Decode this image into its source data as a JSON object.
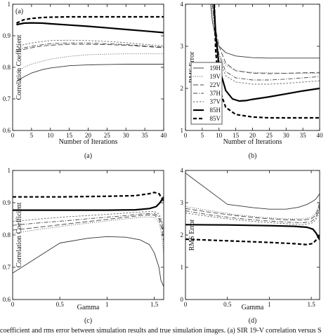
{
  "caption": "coefficient and rms error between simulation results and true simulation images. (a) SIR 19-V correlation versus S",
  "chart_data": [
    {
      "id": "a",
      "type": "line",
      "panel_label": "(a)",
      "corner_label": "(a)",
      "xlabel": "Number of Iterations",
      "ylabel": "Correlation Coefficient",
      "xlim": [
        0,
        40
      ],
      "ylim": [
        0.6,
        1.0
      ],
      "xticks": [
        0,
        5,
        10,
        15,
        20,
        25,
        30,
        35,
        40
      ],
      "yticks": [
        0.6,
        0.7,
        0.8,
        0.9,
        1.0
      ],
      "yticklabels": [
        "0.6",
        "0.7",
        "0.8",
        "0.9",
        "1"
      ],
      "series": [
        {
          "key": "19H",
          "x": [
            1,
            3,
            5,
            8,
            10,
            15,
            20,
            25,
            30,
            35,
            40
          ],
          "y": [
            0.755,
            0.77,
            0.782,
            0.793,
            0.798,
            0.805,
            0.808,
            0.809,
            0.81,
            0.81,
            0.81
          ]
        },
        {
          "key": "19V",
          "x": [
            1,
            3,
            5,
            8,
            10,
            15,
            20,
            25,
            30,
            35,
            40
          ],
          "y": [
            0.785,
            0.8,
            0.81,
            0.82,
            0.826,
            0.835,
            0.84,
            0.842,
            0.843,
            0.843,
            0.843
          ]
        },
        {
          "key": "22V",
          "x": [
            1,
            3,
            5,
            8,
            10,
            15,
            20,
            25,
            30,
            35,
            40
          ],
          "y": [
            0.85,
            0.857,
            0.862,
            0.868,
            0.87,
            0.873,
            0.873,
            0.872,
            0.87,
            0.866,
            0.862
          ]
        },
        {
          "key": "37H",
          "x": [
            1,
            3,
            5,
            8,
            10,
            15,
            20,
            25,
            30,
            35,
            40
          ],
          "y": [
            0.855,
            0.862,
            0.867,
            0.872,
            0.875,
            0.877,
            0.877,
            0.875,
            0.872,
            0.868,
            0.864
          ]
        },
        {
          "key": "37V",
          "x": [
            1,
            3,
            5,
            8,
            10,
            15,
            20,
            25,
            30,
            35,
            40
          ],
          "y": [
            0.865,
            0.872,
            0.877,
            0.882,
            0.885,
            0.886,
            0.885,
            0.882,
            0.878,
            0.873,
            0.868
          ]
        },
        {
          "key": "85H",
          "x": [
            1,
            3,
            5,
            8,
            10,
            15,
            20,
            25,
            30,
            35,
            40
          ],
          "y": [
            0.935,
            0.94,
            0.941,
            0.94,
            0.938,
            0.934,
            0.93,
            0.925,
            0.92,
            0.915,
            0.91
          ]
        },
        {
          "key": "85V",
          "x": [
            1,
            3,
            5,
            8,
            10,
            15,
            20,
            25,
            30,
            35,
            40
          ],
          "y": [
            0.94,
            0.951,
            0.955,
            0.958,
            0.959,
            0.96,
            0.96,
            0.96,
            0.96,
            0.96,
            0.96
          ]
        }
      ]
    },
    {
      "id": "b",
      "type": "line",
      "panel_label": "(b)",
      "corner_label": "",
      "xlabel": "Number of Iterations",
      "ylabel": "RMS Error",
      "xlim": [
        0,
        40
      ],
      "ylim": [
        1,
        4
      ],
      "xticks": [
        0,
        5,
        10,
        15,
        20,
        25,
        30,
        35,
        40
      ],
      "yticks": [
        1,
        2,
        3,
        4
      ],
      "yticklabels": [
        "1",
        "2",
        "3",
        "4"
      ],
      "legend": [
        "19H",
        "19V",
        "22V",
        "37H",
        "37V",
        "85H",
        "85V"
      ],
      "series": [
        {
          "key": "19H",
          "x": [
            7.5,
            8,
            9,
            10,
            12,
            15,
            20,
            25,
            30,
            35,
            40
          ],
          "y": [
            4.0,
            3.6,
            3.2,
            3.0,
            2.85,
            2.77,
            2.73,
            2.72,
            2.72,
            2.72,
            2.72
          ]
        },
        {
          "key": "19V",
          "x": [
            7.8,
            8,
            9,
            10,
            12,
            15,
            20,
            25,
            30,
            35,
            40
          ],
          "y": [
            4.0,
            3.7,
            3.1,
            2.8,
            2.55,
            2.42,
            2.38,
            2.37,
            2.36,
            2.36,
            2.36
          ]
        },
        {
          "key": "22V",
          "x": [
            8,
            9,
            10,
            12,
            15,
            20,
            25,
            30,
            35,
            40
          ],
          "y": [
            4.0,
            3.4,
            3.0,
            2.6,
            2.42,
            2.36,
            2.35,
            2.36,
            2.37,
            2.38
          ]
        },
        {
          "key": "37H",
          "x": [
            8,
            9,
            10,
            12,
            15,
            20,
            25,
            30,
            35,
            40
          ],
          "y": [
            4.0,
            3.3,
            2.8,
            2.4,
            2.25,
            2.2,
            2.2,
            2.22,
            2.25,
            2.28
          ]
        },
        {
          "key": "37V",
          "x": [
            8,
            9,
            10,
            12,
            15,
            20,
            25,
            30,
            35,
            40
          ],
          "y": [
            4.0,
            3.2,
            2.7,
            2.3,
            2.15,
            2.1,
            2.1,
            2.12,
            2.15,
            2.18
          ]
        },
        {
          "key": "85H",
          "x": [
            8.5,
            9,
            10,
            12,
            14,
            16,
            18,
            20,
            25,
            30,
            35,
            40
          ],
          "y": [
            4.0,
            3.3,
            2.5,
            1.95,
            1.75,
            1.7,
            1.71,
            1.74,
            1.8,
            1.87,
            1.94,
            2.0
          ]
        },
        {
          "key": "85V",
          "x": [
            8.6,
            9,
            10,
            12,
            15,
            20,
            25,
            30,
            35,
            40
          ],
          "y": [
            4.0,
            2.9,
            2.0,
            1.55,
            1.38,
            1.32,
            1.3,
            1.3,
            1.3,
            1.3
          ]
        }
      ]
    },
    {
      "id": "c",
      "type": "line",
      "panel_label": "(c)",
      "corner_label": "",
      "xlabel": "Gamma",
      "ylabel": "Correlation Coefficient",
      "xlim": [
        0,
        1.6
      ],
      "ylim": [
        0.6,
        1.0
      ],
      "xticks": [
        0,
        0.5,
        1,
        1.5
      ],
      "xticklabels": [
        "0",
        "0.5",
        "1",
        "1.5"
      ],
      "yticks": [
        0.6,
        0.7,
        0.8,
        0.9,
        1.0
      ],
      "yticklabels": [
        "0.6",
        "0.7",
        "0.8",
        "0.9",
        "1"
      ],
      "series": [
        {
          "key": "19H",
          "x": [
            0,
            0.5,
            0.8,
            1.0,
            1.2,
            1.35,
            1.45,
            1.5,
            1.55,
            1.57,
            1.6
          ],
          "y": [
            0.682,
            0.775,
            0.79,
            0.795,
            0.793,
            0.785,
            0.77,
            0.745,
            0.7,
            0.66,
            0.64
          ]
        },
        {
          "key": "19V",
          "x": [
            0,
            0.3,
            0.6,
            0.9,
            1.2,
            1.4,
            1.5,
            1.55,
            1.58,
            1.6
          ],
          "y": [
            0.805,
            0.818,
            0.83,
            0.84,
            0.85,
            0.856,
            0.855,
            0.84,
            0.8,
            0.74
          ]
        },
        {
          "key": "22V",
          "x": [
            0,
            0.3,
            0.6,
            0.9,
            1.2,
            1.4,
            1.5,
            1.55,
            1.58,
            1.6
          ],
          "y": [
            0.815,
            0.825,
            0.835,
            0.845,
            0.855,
            0.862,
            0.862,
            0.85,
            0.82,
            0.78
          ]
        },
        {
          "key": "37H",
          "x": [
            0,
            0.3,
            0.6,
            0.9,
            1.2,
            1.4,
            1.5,
            1.55,
            1.58,
            1.6
          ],
          "y": [
            0.83,
            0.838,
            0.845,
            0.853,
            0.86,
            0.866,
            0.867,
            0.857,
            0.835,
            0.8
          ]
        },
        {
          "key": "37V",
          "x": [
            0,
            0.3,
            0.6,
            0.9,
            1.2,
            1.4,
            1.5,
            1.55,
            1.58,
            1.6
          ],
          "y": [
            0.842,
            0.85,
            0.857,
            0.862,
            0.868,
            0.872,
            0.873,
            0.865,
            0.845,
            0.81
          ]
        },
        {
          "key": "85H",
          "x": [
            0,
            0.5,
            1.0,
            1.3,
            1.45,
            1.52,
            1.56,
            1.6
          ],
          "y": [
            0.877,
            0.877,
            0.877,
            0.878,
            0.882,
            0.888,
            0.9,
            0.918
          ]
        },
        {
          "key": "85V",
          "x": [
            0,
            0.5,
            1.0,
            1.3,
            1.45,
            1.5,
            1.55,
            1.6
          ],
          "y": [
            0.918,
            0.918,
            0.92,
            0.922,
            0.928,
            0.932,
            0.928,
            0.905
          ]
        }
      ]
    },
    {
      "id": "d",
      "type": "line",
      "panel_label": "(d)",
      "corner_label": "",
      "xlabel": "Gamma",
      "ylabel": "RMS Error",
      "xlim": [
        0,
        1.6
      ],
      "ylim": [
        0,
        4
      ],
      "xticks": [
        0,
        0.5,
        1,
        1.5
      ],
      "xticklabels": [
        "0",
        "0.5",
        "1",
        "1.5"
      ],
      "yticks": [
        0,
        1,
        2,
        3,
        4
      ],
      "yticklabels": [
        "0",
        "1",
        "2",
        "3",
        "4"
      ],
      "series": [
        {
          "key": "19H",
          "x": [
            0,
            0.5,
            0.8,
            1.0,
            1.2,
            1.35,
            1.45,
            1.5,
            1.55,
            1.58,
            1.6
          ],
          "y": [
            3.92,
            2.95,
            2.85,
            2.8,
            2.8,
            2.86,
            2.95,
            3.02,
            3.1,
            3.2,
            3.28
          ]
        },
        {
          "key": "19V",
          "x": [
            0,
            0.3,
            0.6,
            0.9,
            1.2,
            1.4,
            1.5,
            1.55,
            1.58,
            1.6
          ],
          "y": [
            2.88,
            2.75,
            2.63,
            2.55,
            2.5,
            2.5,
            2.55,
            2.65,
            2.85,
            3.05
          ]
        },
        {
          "key": "22V",
          "x": [
            0,
            0.3,
            0.6,
            0.9,
            1.2,
            1.4,
            1.5,
            1.55,
            1.58,
            1.6
          ],
          "y": [
            2.82,
            2.7,
            2.6,
            2.52,
            2.47,
            2.46,
            2.5,
            2.6,
            2.78,
            2.98
          ]
        },
        {
          "key": "37H",
          "x": [
            0,
            0.3,
            0.6,
            0.9,
            1.2,
            1.4,
            1.5,
            1.55,
            1.58,
            1.6
          ],
          "y": [
            2.75,
            2.62,
            2.52,
            2.45,
            2.4,
            2.38,
            2.42,
            2.52,
            2.7,
            2.9
          ]
        },
        {
          "key": "37V",
          "x": [
            0,
            0.3,
            0.6,
            0.9,
            1.2,
            1.4,
            1.5,
            1.55,
            1.58,
            1.6
          ],
          "y": [
            2.68,
            2.57,
            2.47,
            2.4,
            2.35,
            2.32,
            2.36,
            2.45,
            2.62,
            2.82
          ]
        },
        {
          "key": "85H",
          "x": [
            0,
            0.5,
            1.0,
            1.3,
            1.45,
            1.52,
            1.56,
            1.6
          ],
          "y": [
            2.32,
            2.31,
            2.29,
            2.27,
            2.24,
            2.18,
            2.05,
            1.85
          ]
        },
        {
          "key": "85V",
          "x": [
            0,
            0.5,
            1.0,
            1.3,
            1.45,
            1.52,
            1.56,
            1.6
          ],
          "y": [
            1.87,
            1.82,
            1.77,
            1.73,
            1.7,
            1.74,
            1.85,
            2.0
          ]
        }
      ]
    }
  ],
  "series_styles": {
    "19H": {
      "color": "#333333",
      "width": 0.9,
      "dash": ""
    },
    "19V": {
      "color": "#666666",
      "width": 0.9,
      "dash": "1.2,1.8"
    },
    "22V": {
      "color": "#444444",
      "width": 0.9,
      "dash": "7,3"
    },
    "37H": {
      "color": "#444444",
      "width": 0.9,
      "dash": "6,2,1.2,2"
    },
    "37V": {
      "color": "#666666",
      "width": 0.9,
      "dash": "2.5,2"
    },
    "85H": {
      "color": "#000000",
      "width": 2.2,
      "dash": ""
    },
    "85V": {
      "color": "#000000",
      "width": 2.2,
      "dash": "5,3"
    }
  }
}
